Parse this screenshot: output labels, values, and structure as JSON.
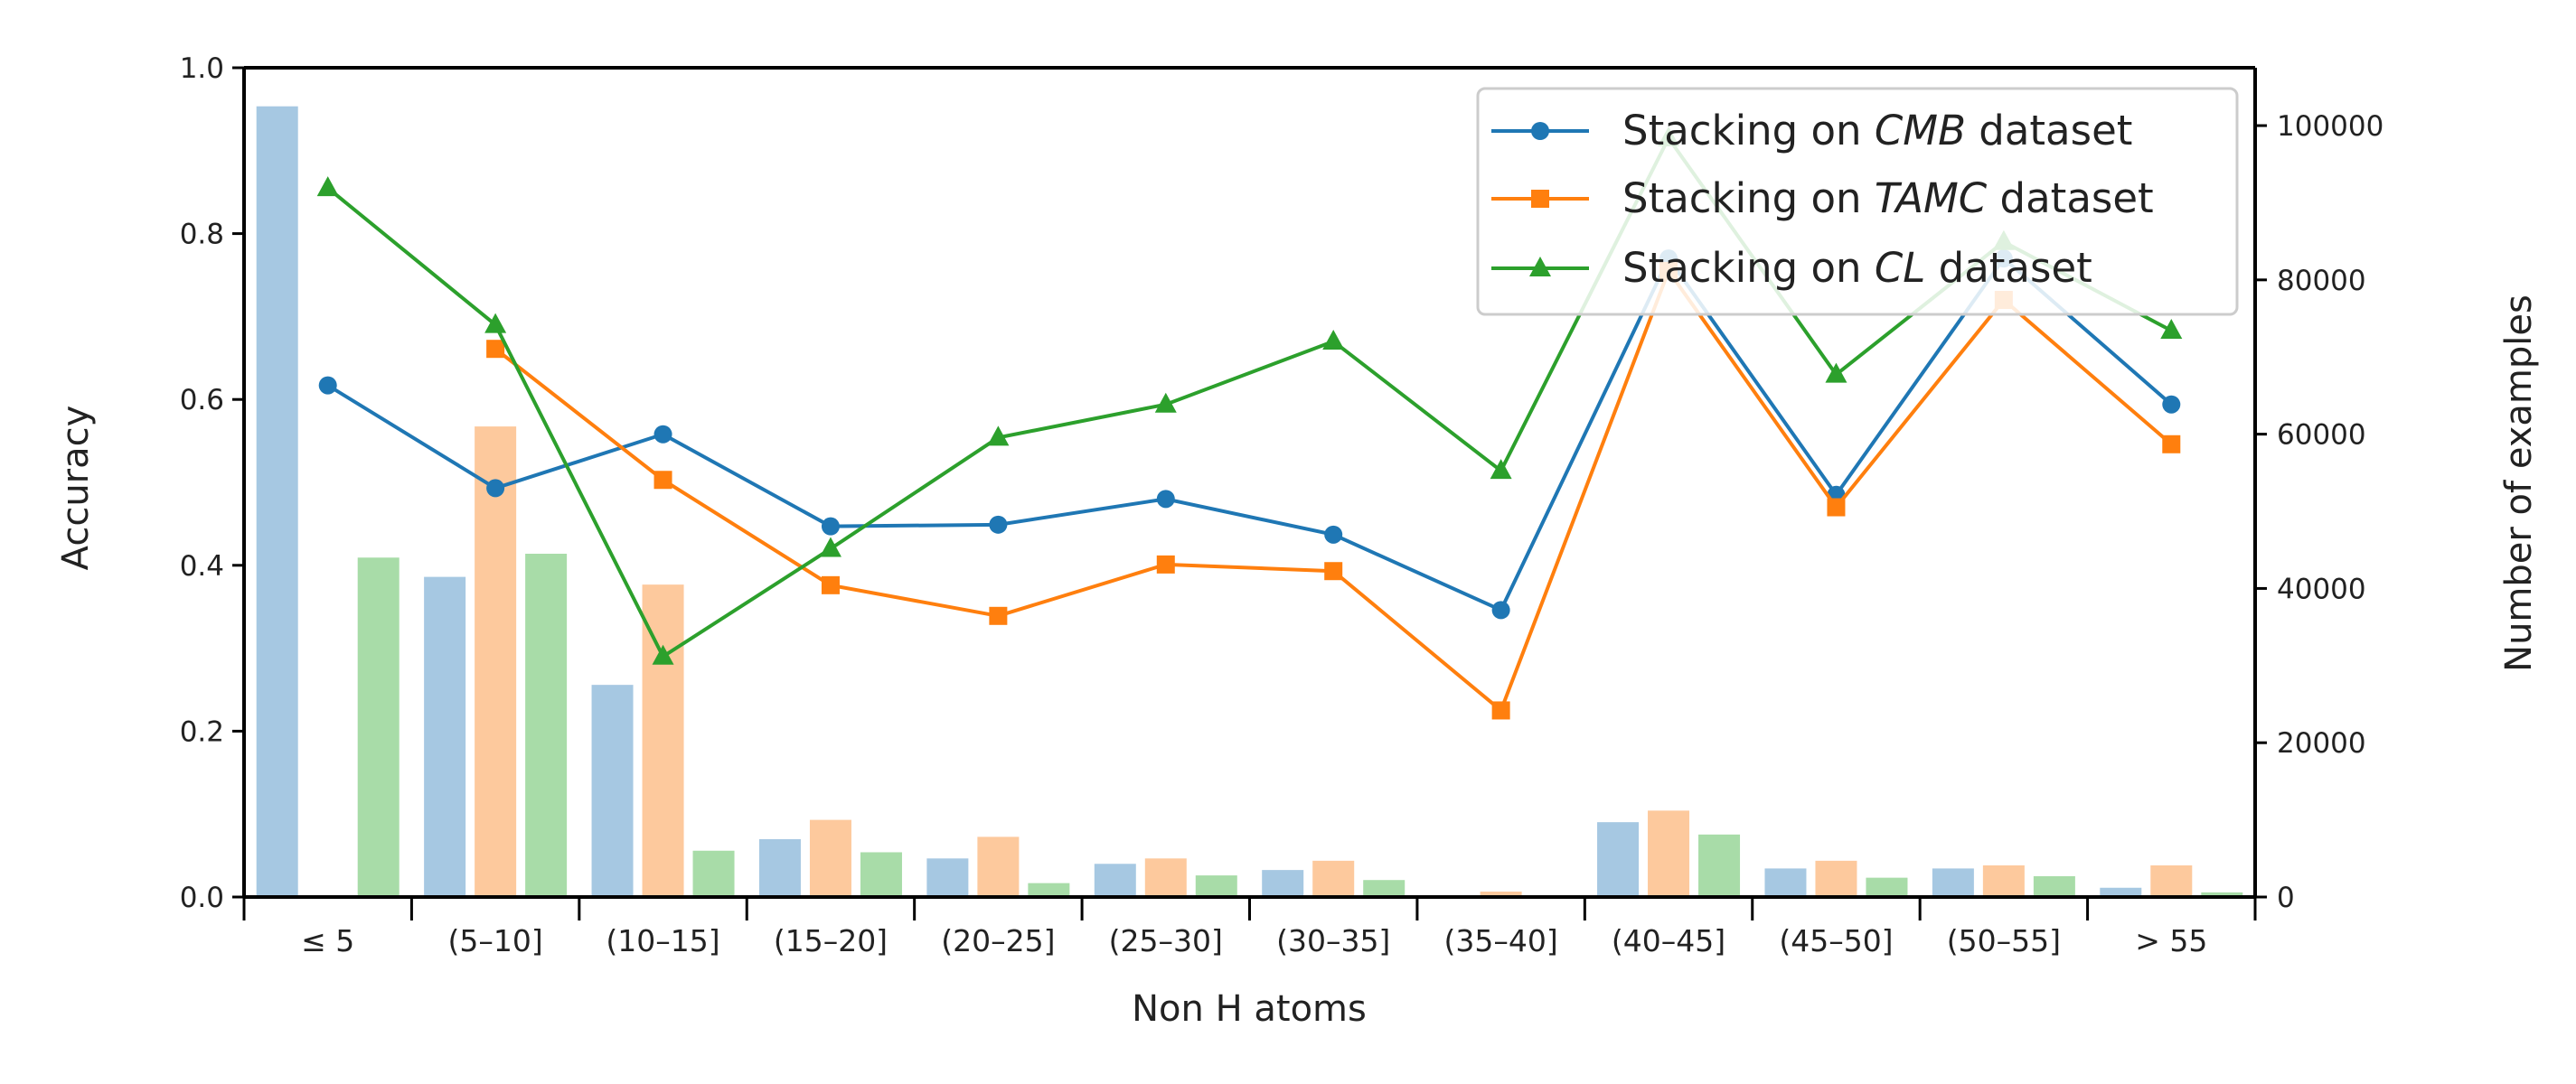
{
  "chart_data": {
    "type": "bar+line",
    "xlabel": "Non H atoms",
    "ylabel": "Accuracy",
    "y2label": "Number of examples",
    "ylim": [
      0,
      1.0
    ],
    "y2lim": [
      0,
      107500
    ],
    "yticks": [
      "0.0",
      "0.2",
      "0.4",
      "0.6",
      "0.8",
      "1.0"
    ],
    "y2ticks": [
      "0",
      "20000",
      "40000",
      "60000",
      "80000",
      "100000"
    ],
    "categories": [
      "≤ 5",
      "(5–10]",
      "(10–15]",
      "(15–20]",
      "(20–25]",
      "(25–30]",
      "(30–35]",
      "(35–40]",
      "(40–45]",
      "(45–50]",
      "(50–55]",
      "> 55"
    ],
    "bar_series": [
      {
        "color": "#a6c8e2",
        "values": [
          102500,
          41500,
          27500,
          7500,
          5000,
          4300,
          3500,
          0,
          9700,
          3700,
          3700,
          1200
        ]
      },
      {
        "color": "#fdc99d",
        "values": [
          0,
          61000,
          40500,
          10000,
          7800,
          5000,
          4700,
          700,
          11200,
          4700,
          4100,
          4100
        ]
      },
      {
        "color": "#a8dca8",
        "values": [
          44000,
          44500,
          6000,
          5800,
          1800,
          2800,
          2200,
          0,
          8100,
          2500,
          2700,
          600
        ]
      }
    ],
    "line_series": [
      {
        "name_prefix": "Stacking on ",
        "name_em": "CMB",
        "name_suffix": " dataset",
        "color": "#1f77b4",
        "marker": "circle",
        "values": [
          0.617,
          0.493,
          0.558,
          0.447,
          0.449,
          0.48,
          0.437,
          0.346,
          0.77,
          0.485,
          0.77,
          0.594
        ]
      },
      {
        "name_prefix": "Stacking on ",
        "name_em": "TAMC",
        "name_suffix": " dataset",
        "color": "#ff7f0e",
        "marker": "square",
        "values": [
          null,
          0.661,
          0.503,
          0.376,
          0.339,
          0.401,
          0.393,
          0.225,
          0.755,
          0.47,
          0.72,
          0.546
        ]
      },
      {
        "name_prefix": "Stacking on ",
        "name_em": "CL",
        "name_suffix": " dataset",
        "color": "#2ca02c",
        "marker": "triangle",
        "values": [
          0.855,
          0.69,
          0.29,
          0.42,
          0.554,
          0.594,
          0.67,
          0.514,
          0.915,
          0.63,
          0.79,
          0.683
        ]
      }
    ],
    "legend_position": "top-right",
    "grid": false
  }
}
